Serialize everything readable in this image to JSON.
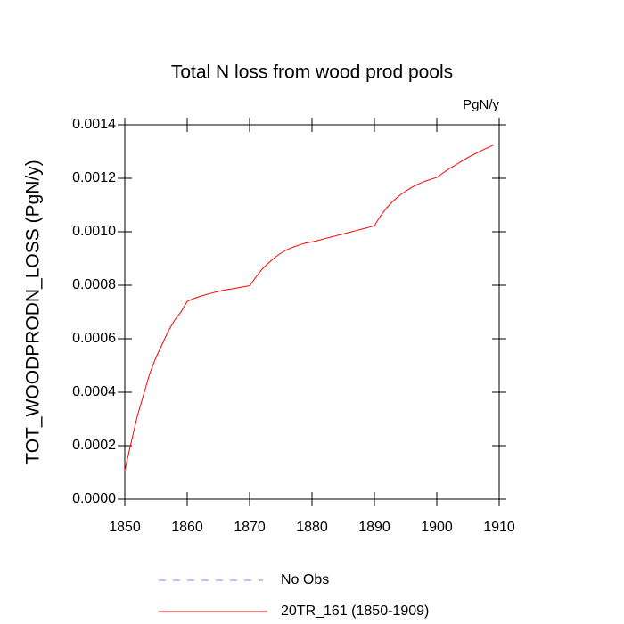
{
  "chart_data": {
    "type": "line",
    "title": "Total N loss from wood prod pools",
    "units_label": "PgN/y",
    "y_label": "TOT_WOODPRODN_LOSS  (PgN/y)",
    "x": [
      1850,
      1851,
      1852,
      1853,
      1854,
      1855,
      1856,
      1857,
      1858,
      1859,
      1860,
      1861,
      1862,
      1863,
      1864,
      1865,
      1866,
      1867,
      1868,
      1869,
      1870,
      1871,
      1872,
      1873,
      1874,
      1875,
      1876,
      1877,
      1878,
      1879,
      1880,
      1881,
      1882,
      1883,
      1884,
      1885,
      1886,
      1887,
      1888,
      1889,
      1890,
      1891,
      1892,
      1893,
      1894,
      1895,
      1896,
      1897,
      1898,
      1899,
      1900,
      1901,
      1902,
      1903,
      1904,
      1905,
      1906,
      1907,
      1908,
      1909
    ],
    "series": [
      {
        "name": "20TR_161 (1850-1909)",
        "color": "#ff0000",
        "values": [
          0.000107,
          0.00021,
          0.00031,
          0.00039,
          0.00047,
          0.00053,
          0.00058,
          0.00063,
          0.00067,
          0.0007,
          0.00074,
          0.00075,
          0.000758,
          0.000765,
          0.000771,
          0.000777,
          0.000782,
          0.000786,
          0.00079,
          0.000794,
          0.000798,
          0.00083,
          0.00086,
          0.000883,
          0.000903,
          0.00092,
          0.000933,
          0.000943,
          0.000951,
          0.000958,
          0.000962,
          0.000968,
          0.000974,
          0.00098,
          0.000986,
          0.000992,
          0.000998,
          0.001004,
          0.00101,
          0.001016,
          0.001023,
          0.00106,
          0.00109,
          0.001115,
          0.001135,
          0.001152,
          0.001166,
          0.001178,
          0.001188,
          0.001196,
          0.001203,
          0.00122,
          0.001236,
          0.00125,
          0.001264,
          0.001278,
          0.00129,
          0.001302,
          0.001313,
          0.001323
        ]
      }
    ],
    "obs_legend": {
      "name": "No Obs",
      "color": "#8080ff",
      "dash": "dashed"
    },
    "xlim": [
      1850,
      1910
    ],
    "xticks": [
      1850,
      1860,
      1870,
      1880,
      1890,
      1900,
      1910
    ],
    "ylim": [
      0,
      0.0014
    ],
    "yticks": [
      {
        "value": 0,
        "label": "0.0000"
      },
      {
        "value": 0.0002,
        "label": "0.0002"
      },
      {
        "value": 0.0004,
        "label": "0.0004"
      },
      {
        "value": 0.0006,
        "label": "0.0006"
      },
      {
        "value": 0.0008,
        "label": "0.0008"
      },
      {
        "value": 0.001,
        "label": "0.0010"
      },
      {
        "value": 0.0012,
        "label": "0.0012"
      },
      {
        "value": 0.0014,
        "label": "0.0014"
      }
    ]
  }
}
